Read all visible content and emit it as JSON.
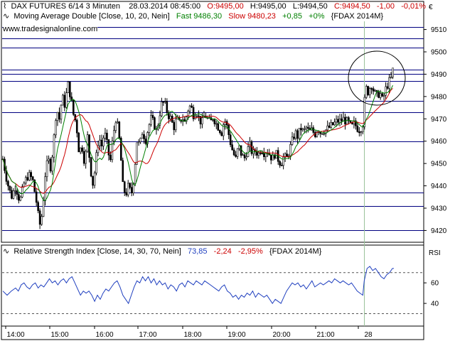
{
  "header": {
    "instrument": "DAX FUTURES 6/14 3 Minuten",
    "datetime": "28.03.2014 08:45:00",
    "ohlc_open": "O:9495,00",
    "ohlc_high": "H:9495,00",
    "ohlc_low": "L:9494,50",
    "ohlc_close": "C:9494,50",
    "ohlc_change": "-1,00",
    "ohlc_pct": "-0,01%",
    "ma_label": "Moving Average Double [Close, 10, 20, Nein]",
    "ma_fast": "Fast 9486,30",
    "ma_slow": "Slow 9480,23",
    "ma_diff": "+0,85",
    "ma_diff_pct": "+0%",
    "ma_instrument": "{FDAX 2014M}",
    "website": "www.tradesignalonline.com",
    "currency": "€"
  },
  "rsi_header": {
    "label": "Relative Strength Index [Close, 14, 30, 70, Nein]",
    "value": "73,85",
    "change": "-2,24",
    "change_pct": "-2,95%",
    "instrument": "{FDAX 2014M}",
    "axis_title": "RSI"
  },
  "colors": {
    "red_text": "#cc0000",
    "green_text": "#008000",
    "rsi_blue": "#1f3fbf",
    "fast_ma": "#008000",
    "slow_ma": "#cc0000",
    "hline": "#000080"
  },
  "chart_data": {
    "type": "candlestick",
    "ylim": [
      9416,
      9514
    ],
    "y_ticks": [
      9420,
      9430,
      9440,
      9450,
      9460,
      9470,
      9480,
      9490,
      9500,
      9510
    ],
    "x_ticks": [
      "14:00",
      "15:00",
      "16:00",
      "17:00",
      "18:00",
      "19:00",
      "20:00",
      "21:00",
      "28"
    ],
    "horizontal_levels": [
      9511,
      9506,
      9502,
      9492,
      9490,
      9487,
      9478,
      9473,
      9460,
      9437,
      9431,
      9420
    ],
    "session_divider": "28",
    "price_path": [
      [
        0,
        9452
      ],
      [
        6,
        9442
      ],
      [
        12,
        9435
      ],
      [
        18,
        9440
      ],
      [
        24,
        9433
      ],
      [
        30,
        9441
      ],
      [
        36,
        9445
      ],
      [
        42,
        9443
      ],
      [
        48,
        9432
      ],
      [
        52,
        9422
      ],
      [
        56,
        9428
      ],
      [
        60,
        9445
      ],
      [
        64,
        9452
      ],
      [
        68,
        9448
      ],
      [
        72,
        9460
      ],
      [
        76,
        9475
      ],
      [
        80,
        9470
      ],
      [
        84,
        9480
      ],
      [
        88,
        9476
      ],
      [
        92,
        9486
      ],
      [
        96,
        9480
      ],
      [
        100,
        9472
      ],
      [
        104,
        9468
      ],
      [
        108,
        9455
      ],
      [
        112,
        9458
      ],
      [
        116,
        9450
      ],
      [
        120,
        9462
      ],
      [
        124,
        9448
      ],
      [
        128,
        9440
      ],
      [
        132,
        9452
      ],
      [
        136,
        9462
      ],
      [
        140,
        9458
      ],
      [
        144,
        9464
      ],
      [
        148,
        9458
      ],
      [
        152,
        9450
      ],
      [
        156,
        9462
      ],
      [
        160,
        9470
      ],
      [
        163,
        9466
      ],
      [
        166,
        9458
      ],
      [
        170,
        9440
      ],
      [
        174,
        9436
      ],
      [
        178,
        9440
      ],
      [
        182,
        9436
      ],
      [
        186,
        9445
      ],
      [
        190,
        9460
      ],
      [
        194,
        9458
      ],
      [
        198,
        9465
      ],
      [
        202,
        9460
      ],
      [
        206,
        9466
      ],
      [
        210,
        9470
      ],
      [
        214,
        9468
      ],
      [
        218,
        9464
      ],
      [
        222,
        9472
      ],
      [
        226,
        9478
      ],
      [
        230,
        9476
      ],
      [
        234,
        9472
      ],
      [
        238,
        9470
      ],
      [
        242,
        9466
      ],
      [
        246,
        9470
      ],
      [
        250,
        9468
      ],
      [
        254,
        9471
      ],
      [
        258,
        9468
      ],
      [
        262,
        9474
      ],
      [
        266,
        9476
      ],
      [
        270,
        9472
      ],
      [
        274,
        9474
      ],
      [
        278,
        9470
      ],
      [
        282,
        9468
      ],
      [
        286,
        9472
      ],
      [
        290,
        9470
      ],
      [
        294,
        9468
      ],
      [
        298,
        9471
      ],
      [
        302,
        9468
      ],
      [
        306,
        9466
      ],
      [
        310,
        9464
      ],
      [
        314,
        9470
      ],
      [
        318,
        9466
      ],
      [
        322,
        9460
      ],
      [
        326,
        9455
      ],
      [
        330,
        9452
      ],
      [
        334,
        9458
      ],
      [
        338,
        9454
      ],
      [
        342,
        9452
      ],
      [
        346,
        9456
      ],
      [
        350,
        9458
      ],
      [
        354,
        9454
      ],
      [
        358,
        9456
      ],
      [
        362,
        9454
      ],
      [
        366,
        9457
      ],
      [
        370,
        9455
      ],
      [
        374,
        9456
      ],
      [
        378,
        9454
      ],
      [
        382,
        9452
      ],
      [
        386,
        9455
      ],
      [
        390,
        9452
      ],
      [
        394,
        9450
      ],
      [
        398,
        9453
      ],
      [
        402,
        9452
      ],
      [
        406,
        9456
      ],
      [
        410,
        9460
      ],
      [
        414,
        9464
      ],
      [
        418,
        9462
      ],
      [
        422,
        9466
      ],
      [
        426,
        9464
      ],
      [
        430,
        9466
      ],
      [
        434,
        9464
      ],
      [
        438,
        9465
      ],
      [
        442,
        9463
      ],
      [
        446,
        9466
      ],
      [
        450,
        9464
      ],
      [
        454,
        9465
      ],
      [
        458,
        9465
      ],
      [
        462,
        9466
      ],
      [
        466,
        9467
      ],
      [
        470,
        9468
      ],
      [
        474,
        9469
      ],
      [
        478,
        9469
      ],
      [
        482,
        9470
      ],
      [
        486,
        9469
      ],
      [
        490,
        9468
      ],
      [
        494,
        9466
      ],
      [
        498,
        9468
      ],
      [
        502,
        9466
      ],
      [
        506,
        9465
      ],
      [
        510,
        9468
      ],
      [
        514,
        9484
      ],
      [
        518,
        9482
      ],
      [
        522,
        9486
      ],
      [
        526,
        9482
      ],
      [
        530,
        9480
      ],
      [
        534,
        9482
      ],
      [
        538,
        9478
      ],
      [
        542,
        9483
      ],
      [
        546,
        9486
      ],
      [
        550,
        9488
      ],
      [
        554,
        9494
      ]
    ],
    "rsi": {
      "ylim": [
        20,
        85
      ],
      "ticks": [
        40,
        60
      ],
      "overbought": 70,
      "oversold": 30,
      "values": [
        [
          0,
          52
        ],
        [
          6,
          48
        ],
        [
          12,
          52
        ],
        [
          18,
          55
        ],
        [
          22,
          52
        ],
        [
          26,
          58
        ],
        [
          30,
          60
        ],
        [
          34,
          56
        ],
        [
          38,
          54
        ],
        [
          42,
          58
        ],
        [
          46,
          60
        ],
        [
          50,
          55
        ],
        [
          54,
          58
        ],
        [
          58,
          56
        ],
        [
          62,
          60
        ],
        [
          66,
          64
        ],
        [
          70,
          60
        ],
        [
          74,
          62
        ],
        [
          78,
          58
        ],
        [
          82,
          62
        ],
        [
          86,
          64
        ],
        [
          90,
          60
        ],
        [
          94,
          64
        ],
        [
          98,
          66
        ],
        [
          102,
          60
        ],
        [
          106,
          54
        ],
        [
          110,
          48
        ],
        [
          114,
          52
        ],
        [
          118,
          50
        ],
        [
          122,
          52
        ],
        [
          126,
          48
        ],
        [
          130,
          42
        ],
        [
          134,
          48
        ],
        [
          138,
          44
        ],
        [
          142,
          50
        ],
        [
          146,
          54
        ],
        [
          150,
          52
        ],
        [
          154,
          56
        ],
        [
          158,
          60
        ],
        [
          162,
          62
        ],
        [
          166,
          56
        ],
        [
          170,
          48
        ],
        [
          174,
          44
        ],
        [
          178,
          40
        ],
        [
          182,
          48
        ],
        [
          186,
          56
        ],
        [
          190,
          62
        ],
        [
          194,
          60
        ],
        [
          198,
          66
        ],
        [
          202,
          62
        ],
        [
          206,
          66
        ],
        [
          210,
          60
        ],
        [
          214,
          64
        ],
        [
          218,
          58
        ],
        [
          222,
          62
        ],
        [
          226,
          58
        ],
        [
          230,
          60
        ],
        [
          234,
          54
        ],
        [
          238,
          58
        ],
        [
          242,
          56
        ],
        [
          246,
          52
        ],
        [
          250,
          58
        ],
        [
          254,
          60
        ],
        [
          258,
          56
        ],
        [
          262,
          62
        ],
        [
          266,
          60
        ],
        [
          270,
          58
        ],
        [
          274,
          62
        ],
        [
          278,
          60
        ],
        [
          282,
          58
        ],
        [
          286,
          62
        ],
        [
          290,
          60
        ],
        [
          294,
          58
        ],
        [
          298,
          56
        ],
        [
          302,
          54
        ],
        [
          306,
          52
        ],
        [
          310,
          56
        ],
        [
          314,
          58
        ],
        [
          318,
          52
        ],
        [
          322,
          50
        ],
        [
          326,
          46
        ],
        [
          330,
          48
        ],
        [
          334,
          44
        ],
        [
          338,
          48
        ],
        [
          342,
          46
        ],
        [
          346,
          50
        ],
        [
          350,
          48
        ],
        [
          354,
          52
        ],
        [
          358,
          46
        ],
        [
          362,
          50
        ],
        [
          366,
          48
        ],
        [
          370,
          46
        ],
        [
          374,
          48
        ],
        [
          378,
          44
        ],
        [
          382,
          40
        ],
        [
          386,
          44
        ],
        [
          390,
          42
        ],
        [
          394,
          40
        ],
        [
          398,
          46
        ],
        [
          402,
          52
        ],
        [
          406,
          56
        ],
        [
          410,
          60
        ],
        [
          414,
          58
        ],
        [
          418,
          60
        ],
        [
          422,
          56
        ],
        [
          426,
          58
        ],
        [
          430,
          54
        ],
        [
          434,
          58
        ],
        [
          438,
          62
        ],
        [
          442,
          56
        ],
        [
          446,
          58
        ],
        [
          450,
          60
        ],
        [
          454,
          58
        ],
        [
          458,
          60
        ],
        [
          462,
          62
        ],
        [
          466,
          60
        ],
        [
          470,
          64
        ],
        [
          474,
          62
        ],
        [
          478,
          60
        ],
        [
          482,
          62
        ],
        [
          486,
          60
        ],
        [
          490,
          58
        ],
        [
          494,
          60
        ],
        [
          498,
          56
        ],
        [
          502,
          52
        ],
        [
          506,
          50
        ],
        [
          510,
          48
        ],
        [
          512,
          62
        ],
        [
          516,
          74
        ],
        [
          520,
          76
        ],
        [
          524,
          72
        ],
        [
          528,
          74
        ],
        [
          532,
          70
        ],
        [
          536,
          66
        ],
        [
          540,
          64
        ],
        [
          544,
          68
        ],
        [
          548,
          70
        ],
        [
          552,
          74
        ],
        [
          554,
          74
        ]
      ]
    }
  }
}
